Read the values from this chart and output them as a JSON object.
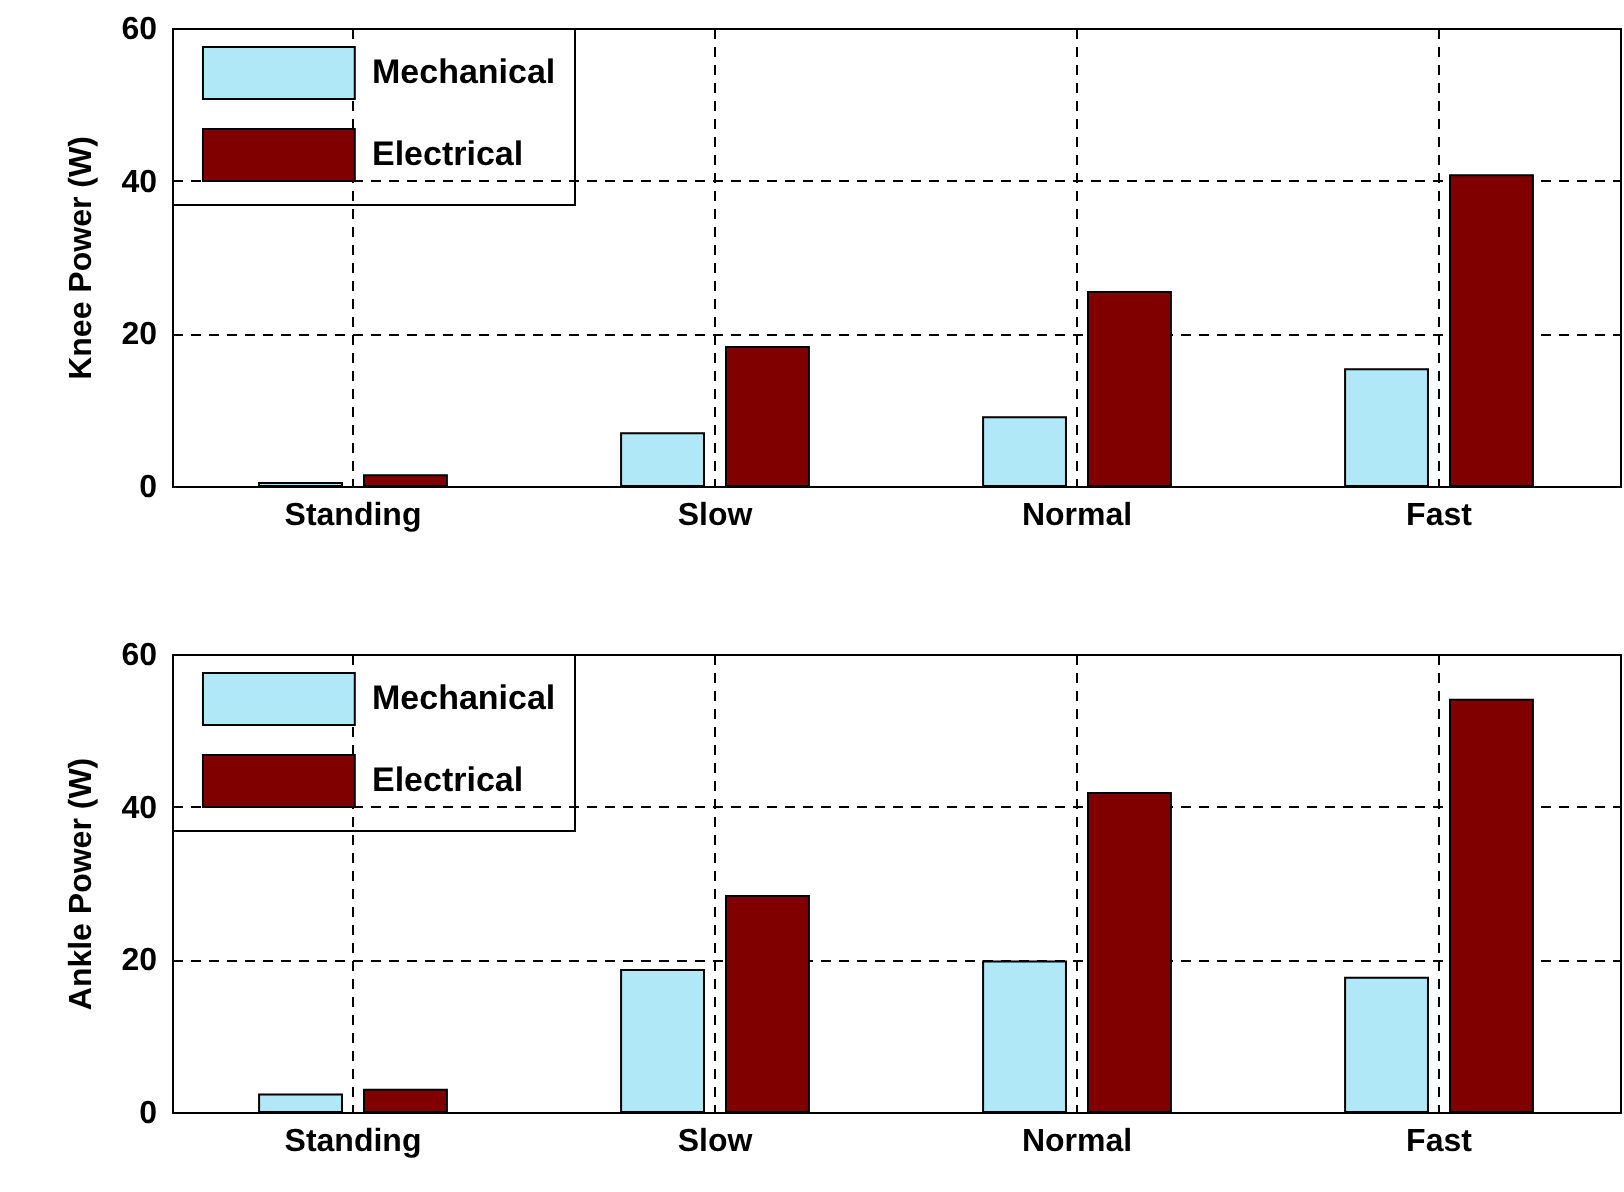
{
  "chart_data": [
    {
      "type": "bar",
      "ylabel": "Knee Power (W)",
      "categories": [
        "Standing",
        "Slow",
        "Normal",
        "Fast"
      ],
      "series": [
        {
          "name": "Mechanical",
          "color": "#b0e8f8",
          "values": [
            0.4,
            6.9,
            9.0,
            15.3
          ]
        },
        {
          "name": "Electrical",
          "color": "#800000",
          "values": [
            1.4,
            18.2,
            25.4,
            40.7
          ]
        }
      ],
      "ylim": [
        0,
        60
      ],
      "yticks": [
        0,
        20,
        40,
        60
      ],
      "grid": true,
      "legend": "top left"
    },
    {
      "type": "bar",
      "ylabel": "Ankle Power (W)",
      "categories": [
        "Standing",
        "Slow",
        "Normal",
        "Fast"
      ],
      "series": [
        {
          "name": "Mechanical",
          "color": "#b0e8f8",
          "values": [
            2.3,
            18.6,
            19.7,
            17.6
          ]
        },
        {
          "name": "Electrical",
          "color": "#800000",
          "values": [
            2.9,
            28.3,
            41.8,
            54.0
          ]
        }
      ],
      "ylim": [
        0,
        60
      ],
      "yticks": [
        0,
        20,
        40,
        60
      ],
      "grid": true,
      "legend": "top left"
    }
  ]
}
